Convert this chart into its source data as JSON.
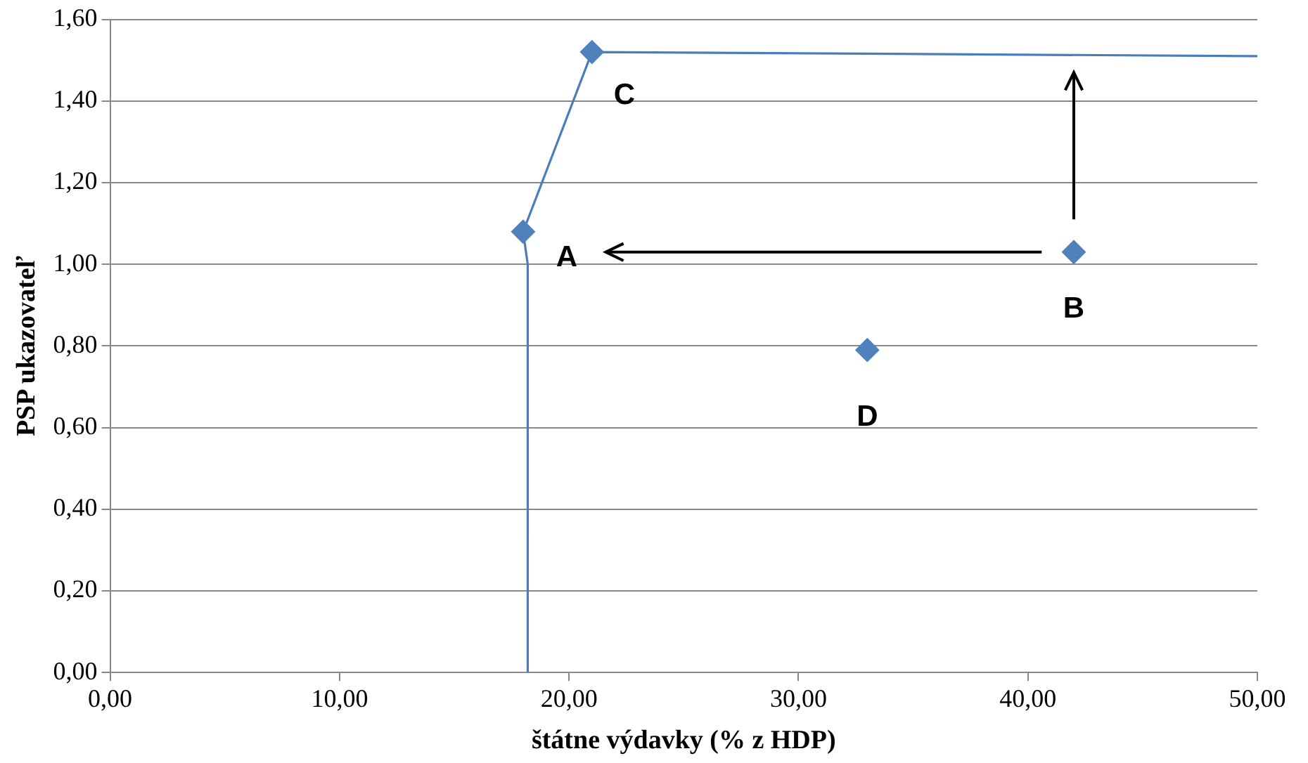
{
  "chart_data": {
    "type": "scatter",
    "xlabel": "štátne výdavky (% z HDP)",
    "ylabel": "PSP ukazovateľ",
    "xlim": [
      0,
      50
    ],
    "xticks": [
      {
        "value": 0,
        "label": "0,00"
      },
      {
        "value": 10,
        "label": "10,00"
      },
      {
        "value": 20,
        "label": "20,00"
      },
      {
        "value": 30,
        "label": "30,00"
      },
      {
        "value": 40,
        "label": "40,00"
      },
      {
        "value": 50,
        "label": "50,00"
      }
    ],
    "ylim": [
      0,
      1.6
    ],
    "yticks": [
      {
        "value": 0,
        "label": "0,00"
      },
      {
        "value": 0.2,
        "label": "0,20"
      },
      {
        "value": 0.4,
        "label": "0,40"
      },
      {
        "value": 0.6,
        "label": "0,60"
      },
      {
        "value": 0.8,
        "label": "0,80"
      },
      {
        "value": 1,
        "label": "1,00"
      },
      {
        "value": 1.2,
        "label": "1,20"
      },
      {
        "value": 1.4,
        "label": "1,40"
      },
      {
        "value": 1.6,
        "label": "1,60"
      }
    ],
    "grid": "y",
    "legend": false,
    "series": [
      {
        "type": "line",
        "color": "#4a7ebb",
        "marker": "none",
        "x": [
          18.2,
          18.2,
          18,
          21,
          50
        ],
        "values": [
          0,
          1.0,
          1.08,
          1.52,
          1.51
        ]
      },
      {
        "type": "scatter",
        "color": "#4f81bd",
        "marker": "diamond",
        "x": [
          18,
          42,
          21,
          33
        ],
        "values": [
          1.08,
          1.03,
          1.52,
          0.79
        ]
      }
    ],
    "annotations": [
      {
        "text": "A",
        "x": 18,
        "y": 1.08
      },
      {
        "text": "B",
        "x": 42,
        "y": 1.03
      },
      {
        "text": "C",
        "x": 21,
        "y": 1.52
      },
      {
        "text": "D",
        "x": 33,
        "y": 0.79
      }
    ]
  }
}
